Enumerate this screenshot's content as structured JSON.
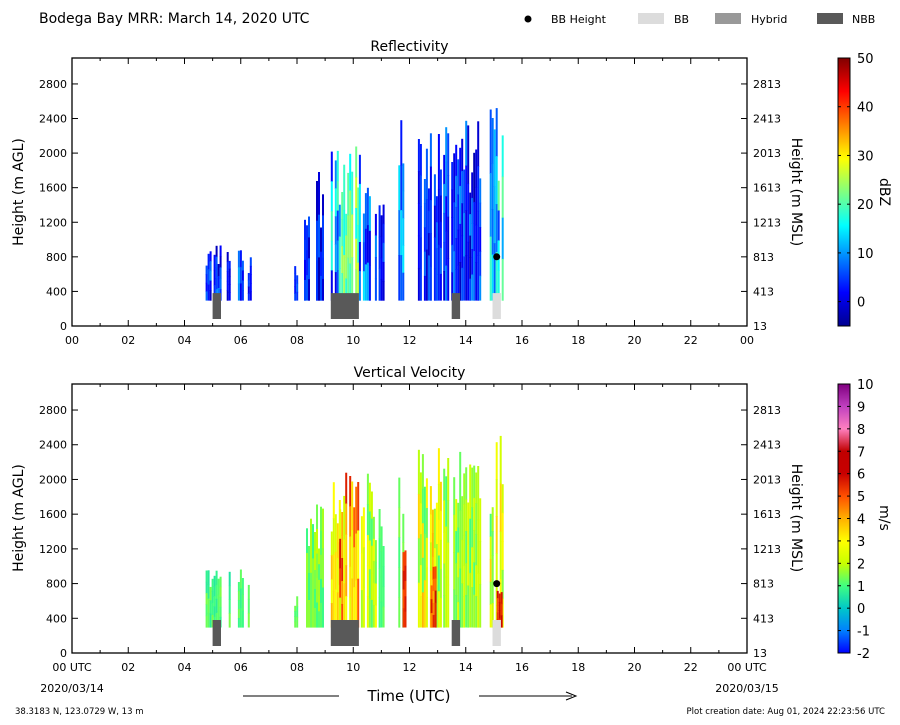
{
  "header": {
    "title": "Bodega Bay MRR:  March 14, 2020 UTC",
    "legend": [
      {
        "label": "BB Height",
        "kind": "dot",
        "color": "#000000"
      },
      {
        "label": "BB",
        "kind": "box",
        "color": "#dcdcdc"
      },
      {
        "label": "Hybrid",
        "kind": "box",
        "color": "#999999"
      },
      {
        "label": "NBB",
        "kind": "box",
        "color": "#595959"
      }
    ]
  },
  "footer": {
    "location": "38.3183 N, 123.0729 W, 13 m",
    "creation": "Plot creation date: Aug 01, 2024 22:23:56 UTC",
    "xlabel": "Time (UTC)",
    "start_date": "2020/03/14",
    "end_date": "2020/03/15"
  },
  "colors": {
    "dbz_scale": [
      "#00008f",
      "#0000ff",
      "#0080ff",
      "#00ffff",
      "#80ff80",
      "#ffff00",
      "#ff8000",
      "#ff0000",
      "#800000"
    ],
    "w_scale": [
      "#0000ff",
      "#0080ff",
      "#00c8c8",
      "#40ff80",
      "#c8ff00",
      "#ffff00",
      "#ffb000",
      "#ff5000",
      "#c80000",
      "#c00000",
      "#ff80c0",
      "#c040c0",
      "#800080"
    ],
    "bb": "#dcdcdc",
    "hybrid": "#999999",
    "nbb": "#595959"
  },
  "chart_data": [
    {
      "type": "heatmap",
      "title": "Reflectivity",
      "ylabel": "Height (m AGL)",
      "ylabel_right": "Height (m MSL)",
      "colorbar_label": "dBZ",
      "colorbar_range": [
        -5,
        50
      ],
      "colorbar_ticks": [
        "0",
        "10",
        "20",
        "30",
        "40",
        "50"
      ],
      "colorbar_tick_values": [
        0,
        10,
        20,
        30,
        40,
        50
      ],
      "xlim": [
        0,
        24
      ],
      "ylim": [
        0,
        3100
      ],
      "xticks": [
        "00",
        "02",
        "04",
        "06",
        "08",
        "10",
        "12",
        "14",
        "16",
        "18",
        "20",
        "22",
        "00"
      ],
      "yticks": [
        0,
        400,
        800,
        1200,
        1600,
        2000,
        2400,
        2800
      ],
      "yticks_right": [
        "13",
        "413",
        "813",
        "1213",
        "1613",
        "2013",
        "2413",
        "2813"
      ],
      "echoes": [
        {
          "start": 4.75,
          "end": 5.25,
          "top": 1000,
          "min": -3,
          "max": 10
        },
        {
          "start": 5.5,
          "end": 5.6,
          "top": 1000,
          "min": -3,
          "max": 5
        },
        {
          "start": 5.9,
          "end": 6.05,
          "top": 1000,
          "min": 0,
          "max": 12
        },
        {
          "start": 6.25,
          "end": 6.35,
          "top": 800,
          "min": -2,
          "max": 6
        },
        {
          "start": 7.9,
          "end": 8.0,
          "top": 700,
          "min": 0,
          "max": 8
        },
        {
          "start": 8.25,
          "end": 8.9,
          "top": 1800,
          "min": -3,
          "max": 8
        },
        {
          "start": 9.2,
          "end": 9.5,
          "top": 2200,
          "min": 0,
          "max": 20
        },
        {
          "start": 9.5,
          "end": 10.2,
          "top": 2100,
          "min": 15,
          "max": 27
        },
        {
          "start": 10.2,
          "end": 10.8,
          "top": 2100,
          "min": 0,
          "max": 15
        },
        {
          "start": 10.9,
          "end": 11.1,
          "top": 1800,
          "min": -2,
          "max": 8
        },
        {
          "start": 11.6,
          "end": 11.8,
          "top": 2400,
          "min": 0,
          "max": 15
        },
        {
          "start": 12.3,
          "end": 13.1,
          "top": 2400,
          "min": -2,
          "max": 8
        },
        {
          "start": 13.2,
          "end": 14.5,
          "top": 2400,
          "min": -3,
          "max": 10
        },
        {
          "start": 14.85,
          "end": 15.3,
          "top": 2600,
          "min": 5,
          "max": 22
        }
      ],
      "bb_height": [
        {
          "x": 15.1,
          "y": 800
        }
      ],
      "bb_types": [
        {
          "start": 5.0,
          "end": 5.3,
          "type": "NBB"
        },
        {
          "start": 9.2,
          "end": 10.2,
          "type": "NBB"
        },
        {
          "start": 13.5,
          "end": 13.8,
          "type": "NBB"
        },
        {
          "start": 14.95,
          "end": 15.25,
          "type": "BB"
        }
      ]
    },
    {
      "type": "heatmap",
      "title": "Vertical Velocity",
      "ylabel": "Height (m AGL)",
      "ylabel_right": "Height (m MSL)",
      "colorbar_label": "m/s",
      "colorbar_range": [
        -2,
        10
      ],
      "colorbar_ticks": [
        "-2",
        "-1",
        "0",
        "1",
        "2",
        "3",
        "4",
        "5",
        "6",
        "7",
        "8",
        "9",
        "10"
      ],
      "colorbar_tick_values": [
        -2,
        -1,
        0,
        1,
        2,
        3,
        4,
        5,
        6,
        7,
        8,
        9,
        10
      ],
      "xlim": [
        0,
        24
      ],
      "ylim": [
        0,
        3100
      ],
      "xticks": [
        "00 UTC",
        "02",
        "04",
        "06",
        "08",
        "10",
        "12",
        "14",
        "16",
        "18",
        "20",
        "22",
        "00 UTC"
      ],
      "yticks": [
        0,
        400,
        800,
        1200,
        1600,
        2000,
        2400,
        2800
      ],
      "yticks_right": [
        "13",
        "413",
        "813",
        "1213",
        "1613",
        "2013",
        "2413",
        "2813"
      ],
      "echoes": [
        {
          "start": 4.75,
          "end": 5.25,
          "top": 1000,
          "min": 0.5,
          "max": 1.5
        },
        {
          "start": 5.5,
          "end": 5.6,
          "top": 1000,
          "min": 0.5,
          "max": 1.5
        },
        {
          "start": 5.9,
          "end": 6.05,
          "top": 1000,
          "min": 0.8,
          "max": 1.5
        },
        {
          "start": 6.25,
          "end": 6.35,
          "top": 800,
          "min": 0.8,
          "max": 1.5
        },
        {
          "start": 7.9,
          "end": 8.0,
          "top": 700,
          "min": 1,
          "max": 1.5
        },
        {
          "start": 8.25,
          "end": 8.9,
          "top": 1800,
          "min": 0.8,
          "max": 2
        },
        {
          "start": 9.2,
          "end": 9.5,
          "top": 2200,
          "min": 2,
          "max": 4
        },
        {
          "start": 9.5,
          "end": 10.2,
          "top": 2100,
          "min": 2,
          "max": 6
        },
        {
          "start": 10.2,
          "end": 10.8,
          "top": 2100,
          "min": 1,
          "max": 3
        },
        {
          "start": 10.9,
          "end": 11.1,
          "top": 1800,
          "min": 0.8,
          "max": 1.5
        },
        {
          "start": 11.6,
          "end": 11.8,
          "top": 2400,
          "min": 0.8,
          "max": 2
        },
        {
          "start": 11.75,
          "end": 11.85,
          "top": 1200,
          "min": 5,
          "max": 6
        },
        {
          "start": 12.3,
          "end": 13.1,
          "top": 2400,
          "min": 1,
          "max": 4
        },
        {
          "start": 12.75,
          "end": 12.95,
          "top": 1000,
          "min": 4,
          "max": 6
        },
        {
          "start": 13.2,
          "end": 14.5,
          "top": 2400,
          "min": 1,
          "max": 2.5
        },
        {
          "start": 14.85,
          "end": 15.3,
          "top": 2600,
          "min": 1,
          "max": 4
        },
        {
          "start": 15.1,
          "end": 15.25,
          "top": 900,
          "min": 5,
          "max": 6
        }
      ],
      "bb_height": [
        {
          "x": 15.1,
          "y": 800
        }
      ],
      "bb_types": [
        {
          "start": 5.0,
          "end": 5.3,
          "type": "NBB"
        },
        {
          "start": 9.2,
          "end": 10.2,
          "type": "NBB"
        },
        {
          "start": 13.5,
          "end": 13.8,
          "type": "NBB"
        },
        {
          "start": 14.95,
          "end": 15.25,
          "type": "BB"
        }
      ]
    }
  ]
}
